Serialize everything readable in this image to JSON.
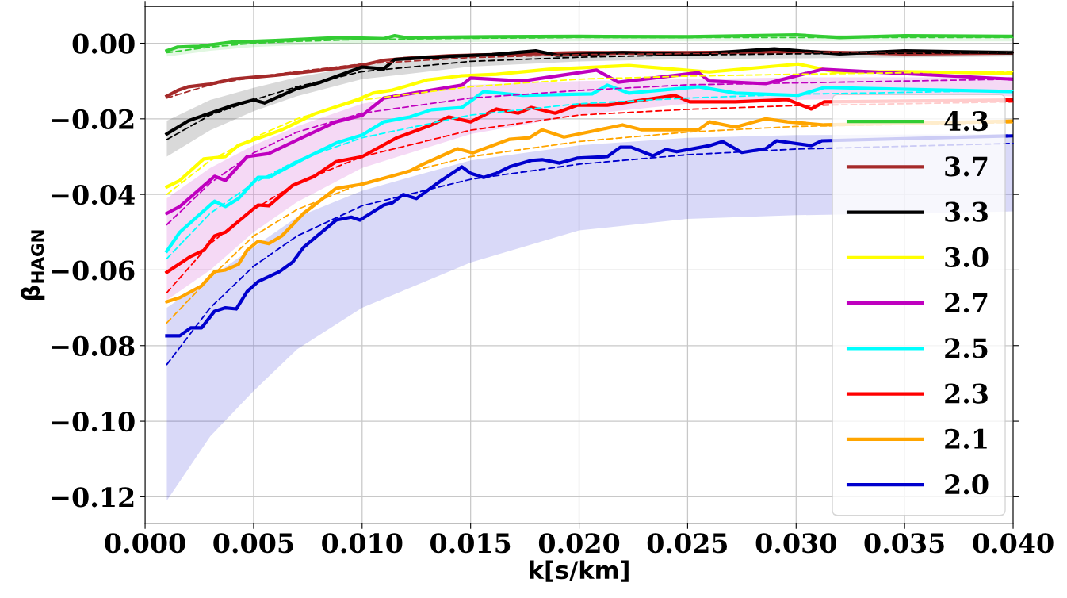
{
  "chart_data": {
    "type": "line",
    "xlabel": "k[s/km]",
    "ylabel": "β$_{HAGN}$",
    "xlim": [
      0.0,
      0.04
    ],
    "ylim": [
      -0.127,
      0.0097
    ],
    "xticks": [
      {
        "value": 0.0,
        "label": "0.000"
      },
      {
        "value": 0.005,
        "label": "0.005"
      },
      {
        "value": 0.01,
        "label": "0.010"
      },
      {
        "value": 0.015,
        "label": "0.015"
      },
      {
        "value": 0.02,
        "label": "0.020"
      },
      {
        "value": 0.025,
        "label": "0.025"
      },
      {
        "value": 0.03,
        "label": "0.030"
      },
      {
        "value": 0.035,
        "label": "0.035"
      },
      {
        "value": 0.04,
        "label": "0.040"
      }
    ],
    "yticks": [
      {
        "value": 0.0,
        "label": "0.00"
      },
      {
        "value": -0.02,
        "label": "−0.02"
      },
      {
        "value": -0.04,
        "label": "−0.04"
      },
      {
        "value": -0.06,
        "label": "−0.06"
      },
      {
        "value": -0.08,
        "label": "−0.08"
      },
      {
        "value": -0.1,
        "label": "−0.10"
      },
      {
        "value": -0.12,
        "label": "−0.12"
      }
    ],
    "grid": true,
    "legend": "lower right",
    "marker": "none",
    "series": [
      {
        "name": "4.3",
        "color": "#33cc33",
        "line_style": "solid",
        "x": [
          0.001,
          0.0015,
          0.0025,
          0.004,
          0.006,
          0.009,
          0.011,
          0.0115,
          0.012,
          0.016,
          0.02,
          0.025,
          0.03,
          0.032,
          0.035,
          0.04
        ],
        "values": [
          -0.002,
          -0.001,
          -0.0008,
          0.0003,
          0.0007,
          0.0015,
          0.0012,
          0.002,
          0.0015,
          0.0017,
          0.0018,
          0.0017,
          0.0022,
          0.0015,
          0.002,
          0.0018
        ]
      },
      {
        "name": "3.7",
        "color": "#a52a2a",
        "line_style": "solid",
        "x": [
          0.001,
          0.0015,
          0.002,
          0.003,
          0.004,
          0.005,
          0.006,
          0.008,
          0.01,
          0.011,
          0.012,
          0.014,
          0.016,
          0.02,
          0.025,
          0.03,
          0.035,
          0.04
        ],
        "values": [
          -0.014,
          -0.0125,
          -0.0115,
          -0.0108,
          -0.0095,
          -0.009,
          -0.0085,
          -0.0072,
          -0.0058,
          -0.0045,
          -0.004,
          -0.0033,
          -0.003,
          -0.0025,
          -0.0025,
          -0.0022,
          -0.0028,
          -0.0026
        ]
      },
      {
        "name": "3.3",
        "color": "#000000",
        "line_style": "solid",
        "x": [
          0.001,
          0.002,
          0.003,
          0.004,
          0.005,
          0.0055,
          0.007,
          0.008,
          0.01,
          0.011,
          0.0115,
          0.014,
          0.016,
          0.018,
          0.019,
          0.022,
          0.025,
          0.029,
          0.032,
          0.035,
          0.04
        ],
        "values": [
          -0.024,
          -0.0205,
          -0.0185,
          -0.0165,
          -0.015,
          -0.0158,
          -0.012,
          -0.0105,
          -0.0063,
          -0.0068,
          -0.0043,
          -0.0035,
          -0.003,
          -0.002,
          -0.0032,
          -0.0025,
          -0.003,
          -0.0015,
          -0.0028,
          -0.002,
          -0.0025
        ]
      },
      {
        "name": "3.0",
        "color": "#ffff00",
        "line_style": "solid",
        "x": [
          0.001,
          0.0016,
          0.0027,
          0.0037,
          0.0043,
          0.0063,
          0.0078,
          0.0098,
          0.0105,
          0.0114,
          0.013,
          0.0146,
          0.0162,
          0.0186,
          0.0223,
          0.026,
          0.0301,
          0.0318,
          0.035,
          0.04
        ],
        "values": [
          -0.038,
          -0.0363,
          -0.0306,
          -0.03,
          -0.027,
          -0.0229,
          -0.0187,
          -0.0149,
          -0.0132,
          -0.0124,
          -0.0097,
          -0.0086,
          -0.0082,
          -0.0069,
          -0.0059,
          -0.0076,
          -0.0055,
          -0.0076,
          -0.0075,
          -0.008
        ]
      },
      {
        "name": "2.7",
        "color": "#bf00bf",
        "line_style": "solid",
        "x": [
          0.001,
          0.0016,
          0.0032,
          0.0037,
          0.0047,
          0.0057,
          0.0073,
          0.0088,
          0.01,
          0.011,
          0.0146,
          0.015,
          0.0174,
          0.0208,
          0.0218,
          0.0255,
          0.026,
          0.0286,
          0.0312,
          0.04
        ],
        "values": [
          -0.045,
          -0.0432,
          -0.0352,
          -0.0363,
          -0.03,
          -0.0292,
          -0.0248,
          -0.0208,
          -0.0191,
          -0.0145,
          -0.0111,
          -0.0092,
          -0.01,
          -0.0071,
          -0.0103,
          -0.0078,
          -0.01,
          -0.0107,
          -0.0069,
          -0.0095
        ]
      },
      {
        "name": "2.5",
        "color": "#00ffff",
        "line_style": "solid",
        "x": [
          0.001,
          0.0016,
          0.0032,
          0.0037,
          0.0043,
          0.0052,
          0.0057,
          0.0073,
          0.0088,
          0.01,
          0.011,
          0.0122,
          0.0132,
          0.0146,
          0.0156,
          0.0174,
          0.0206,
          0.0213,
          0.0223,
          0.0255,
          0.0272,
          0.0301,
          0.0313,
          0.04
        ],
        "values": [
          -0.055,
          -0.05,
          -0.0418,
          -0.0432,
          -0.0411,
          -0.0355,
          -0.0355,
          -0.0306,
          -0.0264,
          -0.0243,
          -0.0208,
          -0.0195,
          -0.0176,
          -0.017,
          -0.0128,
          -0.0138,
          -0.0134,
          -0.0111,
          -0.0132,
          -0.0115,
          -0.0132,
          -0.0138,
          -0.0117,
          -0.0128
        ]
      },
      {
        "name": "2.3",
        "color": "#ff0000",
        "line_style": "solid",
        "x": [
          0.001,
          0.0021,
          0.0027,
          0.0032,
          0.0037,
          0.0052,
          0.0057,
          0.0068,
          0.0078,
          0.0088,
          0.01,
          0.0116,
          0.0132,
          0.014,
          0.015,
          0.0162,
          0.0172,
          0.0178,
          0.0189,
          0.0199,
          0.0213,
          0.0244,
          0.0251,
          0.0272,
          0.0296,
          0.0307,
          0.0313,
          0.04
        ],
        "values": [
          -0.0606,
          -0.0564,
          -0.0548,
          -0.051,
          -0.05,
          -0.0428,
          -0.043,
          -0.0376,
          -0.0352,
          -0.0313,
          -0.03,
          -0.025,
          -0.0216,
          -0.0195,
          -0.0208,
          -0.0174,
          -0.0185,
          -0.017,
          -0.0185,
          -0.0164,
          -0.0164,
          -0.0138,
          -0.0155,
          -0.0155,
          -0.0149,
          -0.0174,
          -0.0155,
          -0.015
        ]
      },
      {
        "name": "2.1",
        "color": "#ffa500",
        "line_style": "solid",
        "x": [
          0.001,
          0.0016,
          0.0026,
          0.0032,
          0.0037,
          0.0043,
          0.0047,
          0.0052,
          0.0057,
          0.0063,
          0.0073,
          0.0088,
          0.01,
          0.0122,
          0.0127,
          0.0144,
          0.0151,
          0.0168,
          0.0177,
          0.0183,
          0.0193,
          0.0206,
          0.022,
          0.0229,
          0.0255,
          0.026,
          0.0272,
          0.0286,
          0.0296,
          0.0313,
          0.04
        ],
        "values": [
          -0.0684,
          -0.0673,
          -0.0642,
          -0.0604,
          -0.06,
          -0.0585,
          -0.0548,
          -0.0524,
          -0.053,
          -0.051,
          -0.045,
          -0.0384,
          -0.0373,
          -0.0338,
          -0.0323,
          -0.0279,
          -0.029,
          -0.0254,
          -0.025,
          -0.0229,
          -0.0248,
          -0.0233,
          -0.0216,
          -0.0229,
          -0.0229,
          -0.0208,
          -0.0222,
          -0.02,
          -0.0208,
          -0.0216,
          -0.0206
        ]
      },
      {
        "name": "2.0",
        "color": "#0000cd",
        "line_style": "solid",
        "x": [
          0.001,
          0.0016,
          0.0021,
          0.0026,
          0.0032,
          0.0037,
          0.0042,
          0.0047,
          0.0052,
          0.0062,
          0.0068,
          0.0073,
          0.0078,
          0.0088,
          0.0095,
          0.0099,
          0.011,
          0.0114,
          0.0119,
          0.0125,
          0.0136,
          0.0146,
          0.015,
          0.0156,
          0.0162,
          0.0168,
          0.0178,
          0.0183,
          0.0191,
          0.0199,
          0.0213,
          0.0219,
          0.0224,
          0.0234,
          0.024,
          0.0245,
          0.026,
          0.0266,
          0.0275,
          0.0286,
          0.0291,
          0.0307,
          0.0312,
          0.04
        ],
        "values": [
          -0.0774,
          -0.0774,
          -0.0753,
          -0.0753,
          -0.0709,
          -0.07,
          -0.0703,
          -0.0657,
          -0.0631,
          -0.0604,
          -0.0579,
          -0.054,
          -0.0516,
          -0.0468,
          -0.046,
          -0.0468,
          -0.0428,
          -0.0422,
          -0.04,
          -0.0411,
          -0.0365,
          -0.0327,
          -0.0344,
          -0.0355,
          -0.0344,
          -0.0327,
          -0.031,
          -0.0308,
          -0.0317,
          -0.0304,
          -0.03,
          -0.0275,
          -0.0275,
          -0.0298,
          -0.0281,
          -0.0287,
          -0.0271,
          -0.026,
          -0.0289,
          -0.0279,
          -0.0258,
          -0.0271,
          -0.0258,
          -0.0245
        ]
      },
      {
        "color": "#33cc33",
        "line_style": "dashed",
        "x": [
          0.001,
          0.003,
          0.005,
          0.007,
          0.01,
          0.015,
          0.02,
          0.025,
          0.03,
          0.04
        ],
        "values": [
          -0.0025,
          -0.001,
          0.0,
          0.0005,
          0.001,
          0.0013,
          0.0015,
          0.0015,
          0.0015,
          0.0015
        ],
        "lower": [
          -0.0035,
          -0.002,
          -0.001,
          -0.0005,
          0.0,
          0.0003,
          0.0005,
          0.0005,
          0.0005,
          0.0005
        ],
        "upper": [
          -0.0015,
          0.0,
          0.0008,
          0.0012,
          0.0017,
          0.002,
          0.0022,
          0.0022,
          0.0022,
          0.0022
        ]
      },
      {
        "color": "#a52a2a",
        "line_style": "dashed",
        "x": [
          0.001,
          0.003,
          0.005,
          0.007,
          0.01,
          0.015,
          0.02,
          0.025,
          0.03,
          0.035,
          0.04
        ],
        "values": [
          -0.0145,
          -0.011,
          -0.009,
          -0.0075,
          -0.0055,
          -0.0038,
          -0.003,
          -0.0028,
          -0.0026,
          -0.0025,
          -0.0025
        ]
      },
      {
        "color": "#000000",
        "line_style": "dashed",
        "x": [
          0.001,
          0.003,
          0.005,
          0.007,
          0.01,
          0.015,
          0.02,
          0.025,
          0.03,
          0.04
        ],
        "values": [
          -0.0255,
          -0.019,
          -0.015,
          -0.0115,
          -0.0075,
          -0.0048,
          -0.0037,
          -0.0031,
          -0.0028,
          -0.0025
        ],
        "lower": [
          -0.03,
          -0.023,
          -0.018,
          -0.014,
          -0.0095,
          -0.0062,
          -0.0048,
          -0.0042,
          -0.004,
          -0.0035
        ],
        "upper": [
          -0.0205,
          -0.015,
          -0.0118,
          -0.009,
          -0.0058,
          -0.0035,
          -0.0027,
          -0.0022,
          -0.002,
          -0.0018
        ]
      },
      {
        "color": "#ffff00",
        "line_style": "dashed",
        "x": [
          0.001,
          0.003,
          0.005,
          0.007,
          0.01,
          0.015,
          0.02,
          0.025,
          0.03,
          0.035,
          0.04
        ],
        "values": [
          -0.04,
          -0.031,
          -0.025,
          -0.02,
          -0.015,
          -0.0115,
          -0.0095,
          -0.0087,
          -0.0082,
          -0.0078,
          -0.0075
        ]
      },
      {
        "color": "#bf00bf",
        "line_style": "dashed",
        "x": [
          0.001,
          0.003,
          0.005,
          0.007,
          0.01,
          0.015,
          0.02,
          0.025,
          0.03,
          0.04
        ],
        "values": [
          -0.048,
          -0.037,
          -0.029,
          -0.0235,
          -0.0185,
          -0.0145,
          -0.0125,
          -0.011,
          -0.0105,
          -0.0095
        ],
        "lower": [
          -0.068,
          -0.06,
          -0.05,
          -0.042,
          -0.033,
          -0.024,
          -0.019,
          -0.016,
          -0.015,
          -0.014
        ],
        "upper": [
          -0.041,
          -0.033,
          -0.027,
          -0.022,
          -0.016,
          -0.011,
          -0.01,
          -0.0095,
          -0.009,
          -0.009
        ]
      },
      {
        "color": "#00ffff",
        "line_style": "dashed",
        "x": [
          0.001,
          0.003,
          0.005,
          0.007,
          0.01,
          0.015,
          0.02,
          0.025,
          0.03,
          0.04
        ],
        "values": [
          -0.057,
          -0.045,
          -0.037,
          -0.031,
          -0.025,
          -0.019,
          -0.016,
          -0.0145,
          -0.0135,
          -0.0125
        ]
      },
      {
        "color": "#ff0000",
        "line_style": "dashed",
        "x": [
          0.001,
          0.003,
          0.005,
          0.007,
          0.01,
          0.015,
          0.02,
          0.025,
          0.03,
          0.04
        ],
        "values": [
          -0.066,
          -0.053,
          -0.044,
          -0.037,
          -0.03,
          -0.023,
          -0.019,
          -0.0175,
          -0.0165,
          -0.0155
        ]
      },
      {
        "color": "#ffa500",
        "line_style": "dashed",
        "x": [
          0.001,
          0.003,
          0.005,
          0.007,
          0.01,
          0.015,
          0.02,
          0.025,
          0.03,
          0.04
        ],
        "values": [
          -0.074,
          -0.062,
          -0.051,
          -0.044,
          -0.037,
          -0.03,
          -0.026,
          -0.0235,
          -0.022,
          -0.021
        ]
      },
      {
        "color": "#0000cd",
        "line_style": "dashed",
        "x": [
          0.001,
          0.003,
          0.005,
          0.007,
          0.01,
          0.015,
          0.02,
          0.025,
          0.03,
          0.04
        ],
        "values": [
          -0.085,
          -0.07,
          -0.059,
          -0.051,
          -0.043,
          -0.036,
          -0.032,
          -0.0295,
          -0.028,
          -0.0265
        ],
        "lower": [
          -0.121,
          -0.104,
          -0.092,
          -0.081,
          -0.07,
          -0.058,
          -0.0495,
          -0.0465,
          -0.0455,
          -0.0445
        ],
        "upper": [
          -0.07,
          -0.062,
          -0.054,
          -0.046,
          -0.039,
          -0.031,
          -0.027,
          -0.025,
          -0.0243,
          -0.024
        ]
      }
    ]
  }
}
